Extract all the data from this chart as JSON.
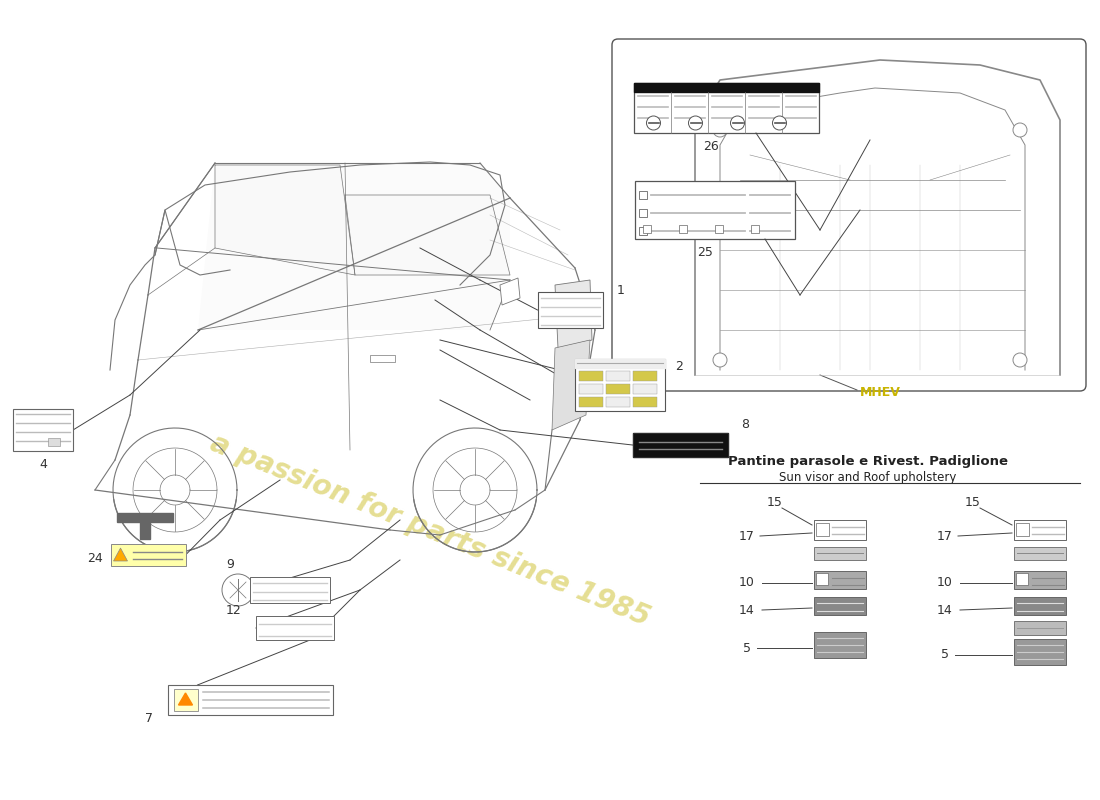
{
  "bg_color": "#ffffff",
  "watermark_text": "a passion for parts since 1985",
  "watermark_color": "#d4c84a",
  "mhev_label": "MHEV",
  "mhev_color": "#c8b400",
  "section_title_it": "Pantine parasole e Rivest. Padiglione",
  "section_title_en": "Sun visor and Roof upholstery",
  "car_color": "#777777",
  "line_color": "#444444",
  "label_line_color": "#333333"
}
